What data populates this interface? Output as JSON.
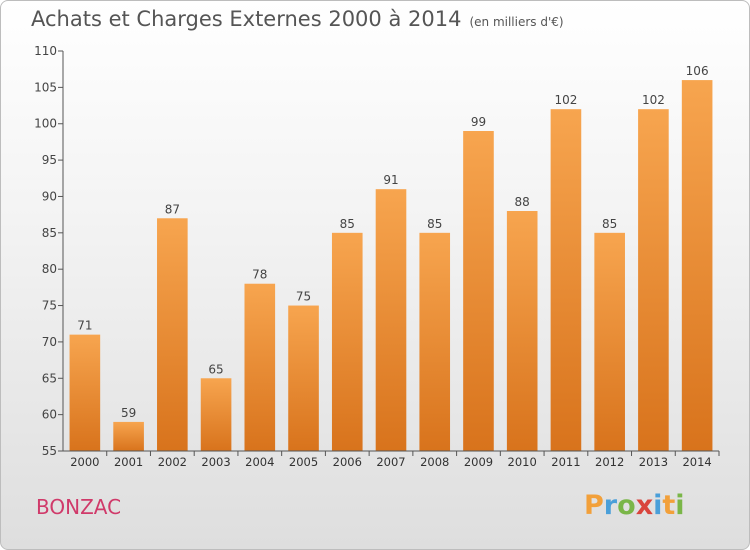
{
  "header": {
    "title": "Achats et Charges Externes 2000 à 2014",
    "subtitle": "(en milliers d'€)"
  },
  "footer": {
    "commune": "BONZAC",
    "logo": {
      "letters": [
        "P",
        "r",
        "o",
        "x",
        "i",
        "t",
        "i"
      ],
      "colors": [
        "#f2a03a",
        "#4a9fd9",
        "#7ab648",
        "#d9443c",
        "#4a9fd9",
        "#f2a03a",
        "#7ab648"
      ]
    }
  },
  "chart_data": {
    "type": "bar",
    "title": "Achats et Charges Externes 2000 à 2014",
    "subtitle": "(en milliers d'€)",
    "categories": [
      "2000",
      "2001",
      "2002",
      "2003",
      "2004",
      "2005",
      "2006",
      "2007",
      "2008",
      "2009",
      "2010",
      "2011",
      "2012",
      "2013",
      "2014"
    ],
    "values": [
      71,
      59,
      87,
      65,
      78,
      75,
      85,
      91,
      85,
      99,
      88,
      102,
      85,
      102,
      106
    ],
    "ylim": [
      55,
      110
    ],
    "yticks": [
      55,
      60,
      65,
      70,
      75,
      80,
      85,
      90,
      95,
      100,
      105,
      110
    ],
    "grid": false,
    "bar_color_top": "#f7a54f",
    "bar_color_bottom": "#d8731c"
  }
}
